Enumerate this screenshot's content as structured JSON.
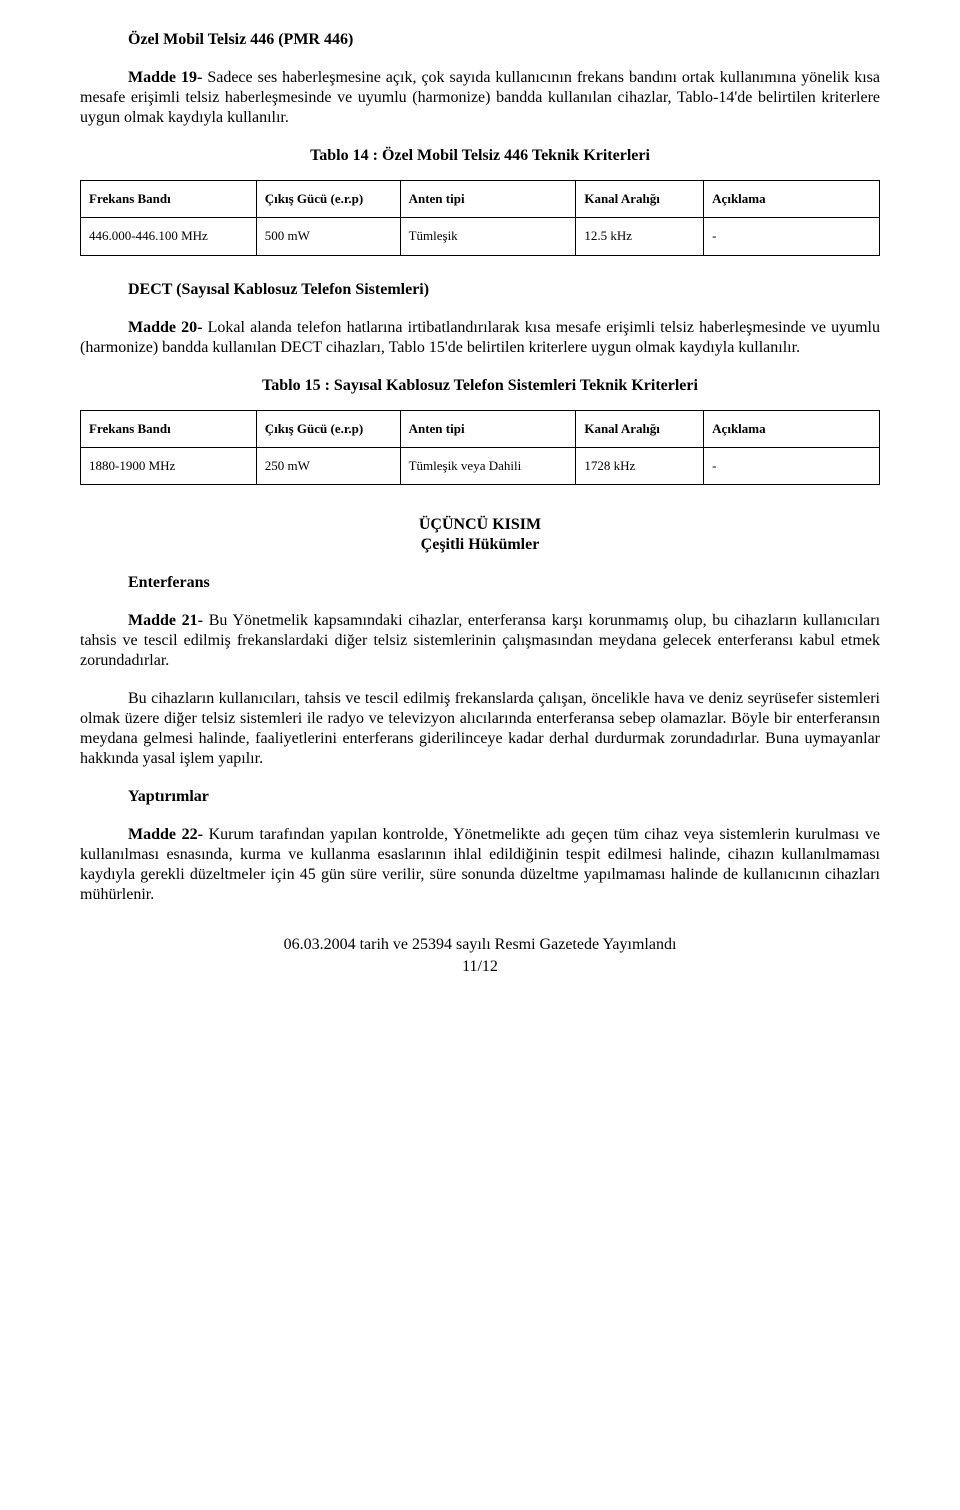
{
  "s1": {
    "title": "Özel Mobil Telsiz 446 (PMR 446)",
    "madde_label": "Madde 19-",
    "para": " Sadece ses haberleşmesine açık, çok sayıda kullanıcının frekans bandını ortak kullanımına yönelik kısa mesafe erişimli telsiz haberleşmesinde ve uyumlu (harmonize) bandda kullanılan cihazlar, Tablo-14'de belirtilen kriterlere uygun olmak kaydıyla kullanılır.",
    "table_caption": "Tablo 14 : Özel Mobil Telsiz 446 Teknik Kriterleri",
    "headers": {
      "band": "Frekans Bandı",
      "power": "Çıkış Gücü (e.r.p)",
      "antenna": "Anten tipi",
      "channel": "Kanal Aralığı",
      "desc": "Açıklama"
    },
    "row": {
      "band": "446.000-446.100 MHz",
      "power": "500 mW",
      "antenna": "Tümleşik",
      "channel": "12.5 kHz",
      "desc": "-"
    }
  },
  "s2": {
    "title": "DECT (Sayısal Kablosuz Telefon Sistemleri)",
    "madde_label": "Madde 20-",
    "para": " Lokal alanda telefon hatlarına irtibatlandırılarak kısa mesafe erişimli telsiz haberleşmesinde ve uyumlu (harmonize) bandda kullanılan DECT cihazları, Tablo 15'de belirtilen kriterlere uygun olmak kaydıyla kullanılır.",
    "table_caption": "Tablo 15 : Sayısal Kablosuz Telefon Sistemleri Teknik Kriterleri",
    "headers": {
      "band": "Frekans Bandı",
      "power": "Çıkış Gücü (e.r.p)",
      "antenna": "Anten tipi",
      "channel": "Kanal Aralığı",
      "desc": "Açıklama"
    },
    "row": {
      "band": "1880-1900 MHz",
      "power": "250 mW",
      "antenna": "Tümleşik veya Dahili",
      "channel": "1728 kHz",
      "desc": "-"
    }
  },
  "part3": {
    "heading1": "ÜÇÜNCÜ KISIM",
    "heading2": "Çeşitli Hükümler",
    "enterferans_title": "Enterferans",
    "m21_label": "Madde 21-",
    "m21_para1": " Bu Yönetmelik kapsamındaki cihazlar, enterferansa karşı korunmamış olup, bu cihazların kullanıcıları tahsis ve tescil edilmiş frekanslardaki diğer telsiz sistemlerinin çalışmasından meydana gelecek enterferansı kabul etmek zorundadırlar.",
    "m21_para2": "Bu cihazların kullanıcıları, tahsis ve tescil edilmiş frekanslarda çalışan, öncelikle hava ve deniz seyrüsefer sistemleri olmak üzere diğer telsiz sistemleri ile radyo ve televizyon alıcılarında enterferansa sebep olamazlar. Böyle bir enterferansın meydana gelmesi halinde, faaliyetlerini enterferans giderilinceye kadar derhal durdurmak zorundadırlar. Buna uymayanlar hakkında yasal işlem yapılır.",
    "yaptirimlar_title": "Yaptırımlar",
    "m22_label": "Madde 22-",
    "m22_para": " Kurum tarafından yapılan kontrolde, Yönetmelikte adı geçen tüm cihaz veya sistemlerin kurulması ve kullanılması esnasında, kurma ve kullanma esaslarının ihlal edildiğinin tespit edilmesi halinde, cihazın kullanılmaması kaydıyla gerekli düzeltmeler için 45 gün süre verilir, süre sonunda düzeltme yapılmaması halinde de kullanıcının cihazları mühürlenir."
  },
  "footer": {
    "line": "06.03.2004 tarih ve 25394 sayılı Resmi Gazetede Yayımlandı",
    "page": "11/12"
  }
}
